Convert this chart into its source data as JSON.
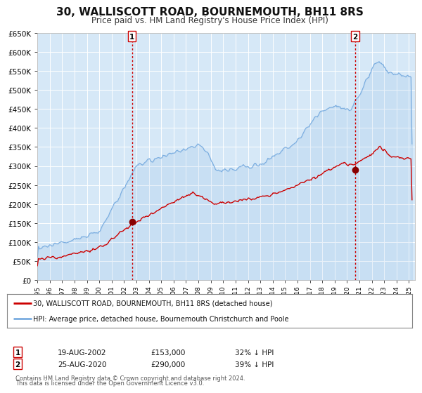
{
  "title": "30, WALLISCOTT ROAD, BOURNEMOUTH, BH11 8RS",
  "subtitle": "Price paid vs. HM Land Registry's House Price Index (HPI)",
  "title_fontsize": 11,
  "subtitle_fontsize": 8.5,
  "background_color": "#d6e8f7",
  "fig_bg_color": "#ffffff",
  "red_line_color": "#cc0000",
  "blue_line_color": "#7aade0",
  "grid_color": "#ffffff",
  "marker_color": "#880000",
  "vline_color": "#cc0000",
  "ylim": [
    0,
    650000
  ],
  "ytick_step": 50000,
  "xmin": 1995.0,
  "xmax": 2025.5,
  "marker1_x": 2002.63,
  "marker1_y": 153000,
  "marker1_label": "1",
  "marker1_date": "19-AUG-2002",
  "marker1_price": "£153,000",
  "marker1_hpi": "32% ↓ HPI",
  "marker2_x": 2020.65,
  "marker2_y": 290000,
  "marker2_label": "2",
  "marker2_date": "25-AUG-2020",
  "marker2_price": "£290,000",
  "marker2_hpi": "39% ↓ HPI",
  "legend_line1": "30, WALLISCOTT ROAD, BOURNEMOUTH, BH11 8RS (detached house)",
  "legend_line2": "HPI: Average price, detached house, Bournemouth Christchurch and Poole",
  "footer1": "Contains HM Land Registry data © Crown copyright and database right 2024.",
  "footer2": "This data is licensed under the Open Government Licence v3.0."
}
